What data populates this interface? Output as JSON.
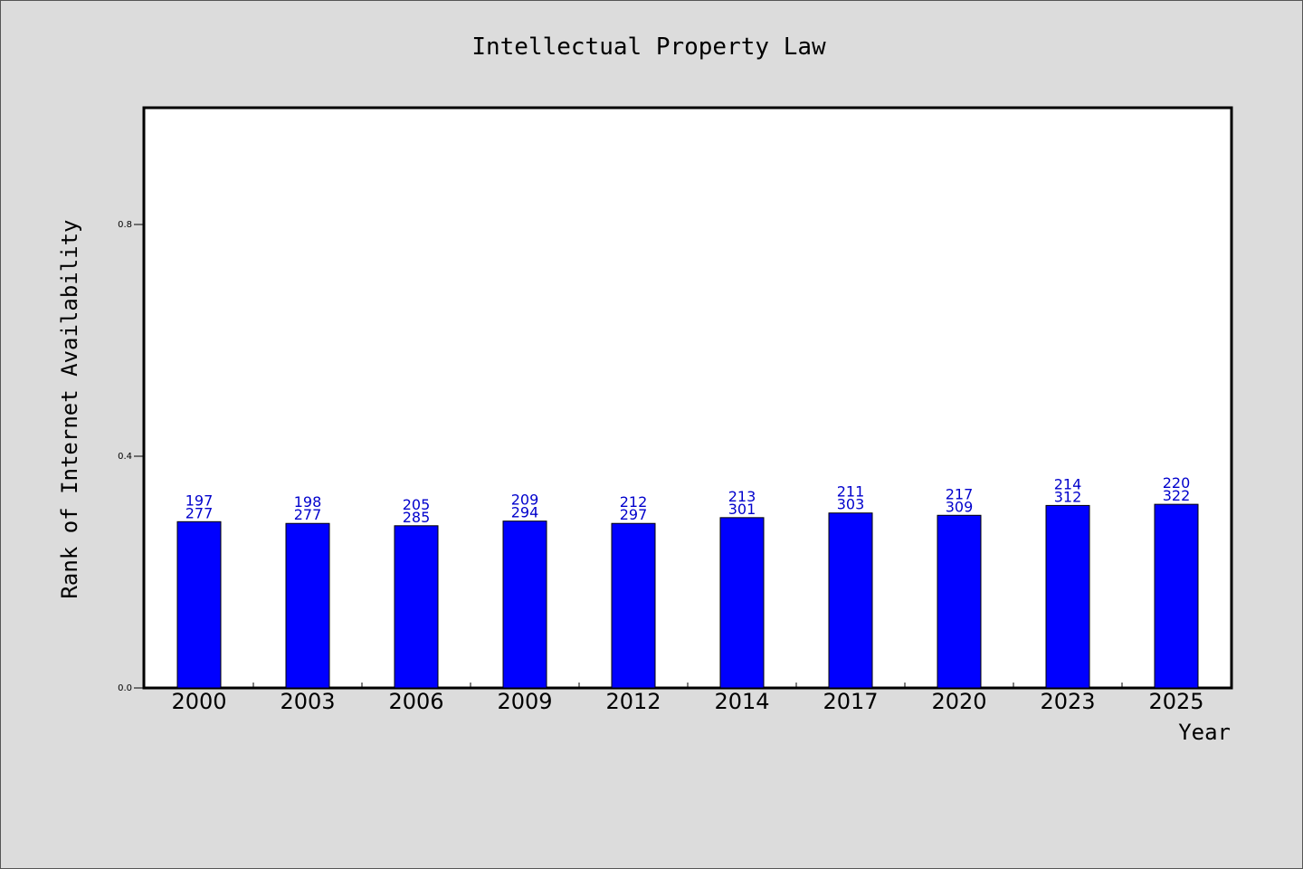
{
  "chart_data": {
    "type": "bar",
    "title": "Intellectual Property Law",
    "xlabel": "Year",
    "ylabel": "Rank of Internet Availability",
    "categories": [
      "2000",
      "2003",
      "2006",
      "2009",
      "2012",
      "2014",
      "2017",
      "2020",
      "2023",
      "2025"
    ],
    "values": [
      0.287,
      0.284,
      0.28,
      0.288,
      0.284,
      0.294,
      0.302,
      0.298,
      0.315,
      0.317
    ],
    "labels_top": [
      "197",
      "198",
      "205",
      "209",
      "212",
      "213",
      "211",
      "217",
      "214",
      "220"
    ],
    "labels_bottom": [
      "277",
      "277",
      "285",
      "294",
      "297",
      "301",
      "303",
      "309",
      "312",
      "322"
    ],
    "ylim": [
      0,
      1.0
    ],
    "yticks": [
      {
        "value": 0.0,
        "label": "0.0"
      },
      {
        "value": 0.4,
        "label": "0.4"
      },
      {
        "value": 0.8,
        "label": "0.8"
      }
    ],
    "bar_color": "#0000ff",
    "label_color": "#0000cc",
    "grid": false
  }
}
